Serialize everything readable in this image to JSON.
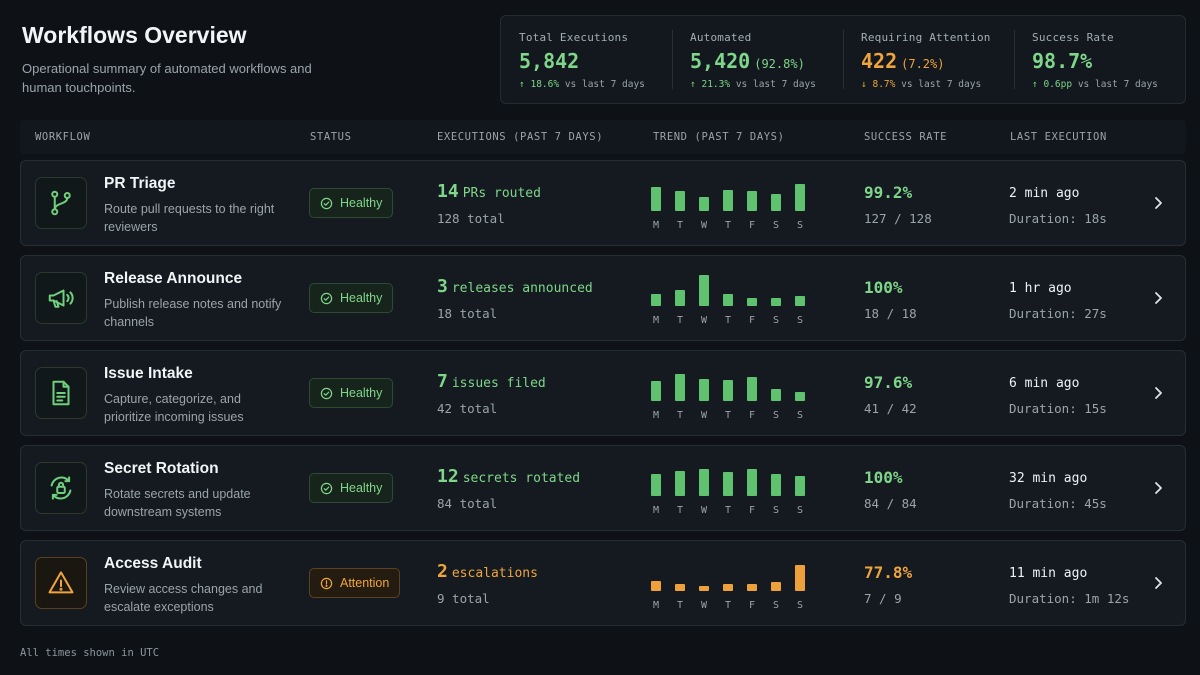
{
  "header": {
    "title": "Workflows Overview",
    "subtitle": "Operational summary of automated workflows and human touchpoints."
  },
  "stats": [
    {
      "label": "Total Executions",
      "value": "5,842",
      "pct": "",
      "color": "#7fd68a",
      "arrow": "↑",
      "delta": "18.6%",
      "delta_suffix": "vs last 7 days",
      "delta_color": "#7fd68a"
    },
    {
      "label": "Automated",
      "value": "5,420",
      "pct": "(92.8%)",
      "color": "#7fd68a",
      "arrow": "↑",
      "delta": "21.3%",
      "delta_suffix": "vs last 7 days",
      "delta_color": "#7fd68a"
    },
    {
      "label": "Requiring Attention",
      "value": "422",
      "pct": "(7.2%)",
      "color": "#f0a43c",
      "arrow": "↓",
      "delta": "8.7%",
      "delta_suffix": "vs last 7 days",
      "delta_color": "#f0a43c"
    },
    {
      "label": "Success Rate",
      "value": "98.7%",
      "pct": "",
      "color": "#7fd68a",
      "arrow": "↑",
      "delta": "0.6pp",
      "delta_suffix": "vs last 7 days",
      "delta_color": "#7fd68a"
    }
  ],
  "table": {
    "columns": [
      "WORKFLOW",
      "STATUS",
      "EXECUTIONS (PAST 7 DAYS)",
      "TREND (PAST 7 DAYS)",
      "SUCCESS RATE",
      "LAST EXECUTION"
    ],
    "days": [
      "M",
      "T",
      "W",
      "T",
      "F",
      "S",
      "S"
    ],
    "rows": [
      {
        "name": "PR Triage",
        "description": "Route pull requests to the right reviewers",
        "icon": "git-branch-icon",
        "status": "Healthy",
        "status_kind": "healthy",
        "exec_count": "14",
        "exec_label": "PRs routed",
        "exec_total": "128 total",
        "trend": [
          0.72,
          0.58,
          0.42,
          0.62,
          0.58,
          0.5,
          0.8
        ],
        "success_rate": "99.2%",
        "success_detail": "127 / 128",
        "last_run": "2 min ago",
        "duration": "Duration: 18s"
      },
      {
        "name": "Release Announce",
        "description": "Publish release notes and notify channels",
        "icon": "megaphone-icon",
        "status": "Healthy",
        "status_kind": "healthy",
        "exec_count": "3",
        "exec_label": "releases announced",
        "exec_total": "18 total",
        "trend": [
          0.36,
          0.46,
          0.9,
          0.36,
          0.24,
          0.24,
          0.28
        ],
        "success_rate": "100%",
        "success_detail": "18 / 18",
        "last_run": "1 hr ago",
        "duration": "Duration: 27s"
      },
      {
        "name": "Issue Intake",
        "description": "Capture, categorize, and prioritize incoming issues",
        "icon": "document-icon",
        "status": "Healthy",
        "status_kind": "healthy",
        "exec_count": "7",
        "exec_label": "issues filed",
        "exec_total": "42 total",
        "trend": [
          0.6,
          0.78,
          0.64,
          0.62,
          0.72,
          0.36,
          0.26
        ],
        "success_rate": "97.6%",
        "success_detail": "41 / 42",
        "last_run": "6 min ago",
        "duration": "Duration: 15s"
      },
      {
        "name": "Secret Rotation",
        "description": "Rotate secrets and update downstream systems",
        "icon": "rotating-lock-icon",
        "status": "Healthy",
        "status_kind": "healthy",
        "exec_count": "12",
        "exec_label": "secrets rotated",
        "exec_total": "84 total",
        "trend": [
          0.66,
          0.74,
          0.78,
          0.7,
          0.78,
          0.66,
          0.58
        ],
        "success_rate": "100%",
        "success_detail": "84 / 84",
        "last_run": "32 min ago",
        "duration": "Duration: 45s"
      },
      {
        "name": "Access Audit",
        "description": "Review access changes and escalate exceptions",
        "icon": "warning-icon",
        "status": "Attention",
        "status_kind": "attention",
        "exec_count": "2",
        "exec_label": "escalations",
        "exec_total": "9 total",
        "trend": [
          0.28,
          0.22,
          0.16,
          0.22,
          0.22,
          0.26,
          0.76
        ],
        "success_rate": "77.8%",
        "success_detail": "7 / 9",
        "last_run": "11 min ago",
        "duration": "Duration: 1m 12s"
      }
    ]
  },
  "footer": {
    "note": "All times shown in UTC"
  }
}
